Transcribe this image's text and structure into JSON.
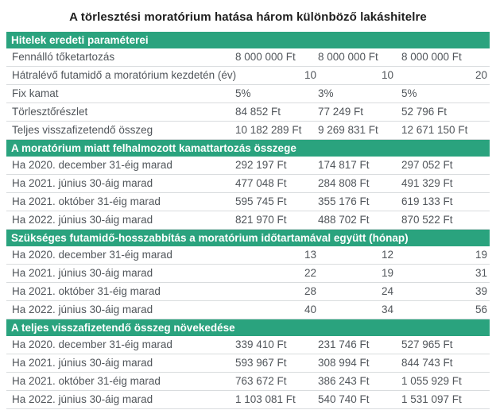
{
  "colors": {
    "accent_green": "#2aa37e",
    "section_header_text": "#ffffff",
    "row_text": "#51565b",
    "row_border": "#d9dcde",
    "title_text": "#1f1f1f",
    "background": "#ffffff"
  },
  "chart_data": {
    "type": "table",
    "title": "A törlesztési moratórium hatása három különböző lakáshitelre",
    "layout": {
      "value_columns": 3,
      "column_headers_visible": false,
      "section_header_style": "green-bar"
    },
    "sections": [
      {
        "header": "Hitelek eredeti paraméterei",
        "rows": [
          {
            "label": "Fennálló tőketartozás",
            "values": [
              "8 000 000 Ft",
              "8 000 000 Ft",
              "8 000 000 Ft"
            ]
          },
          {
            "label": "Hátralévő futamidő a moratórium kezdetén (év)",
            "values": [
              "10",
              "10",
              "20"
            ]
          },
          {
            "label": "Fix kamat",
            "values": [
              "5%",
              "3%",
              "5%"
            ]
          },
          {
            "label": "Törlesztőrészlet",
            "values": [
              "84 852 Ft",
              "77 249 Ft",
              "52 796 Ft"
            ]
          },
          {
            "label": "Teljes visszafizetendő összeg",
            "values": [
              "10 182 289 Ft",
              "9 269 831 Ft",
              "12 671 150 Ft"
            ]
          }
        ]
      },
      {
        "header": "A moratórium miatt felhalmozott kamattartozás összege",
        "rows": [
          {
            "label": "Ha 2020. december 31-éig marad",
            "values": [
              "292 197 Ft",
              "174 817 Ft",
              "297 052 Ft"
            ]
          },
          {
            "label": "Ha 2021. június 30-áig marad",
            "values": [
              "477 048 Ft",
              "284 808 Ft",
              "491 329 Ft"
            ]
          },
          {
            "label": "Ha 2021. október 31-éig marad",
            "values": [
              "595 745 Ft",
              "355 176 Ft",
              "619 133 Ft"
            ]
          },
          {
            "label": "Ha 2022. június 30-áig marad",
            "values": [
              "821 970 Ft",
              "488 702 Ft",
              "870 522 Ft"
            ]
          }
        ]
      },
      {
        "header": "Szükséges futamidő-hosszabbítás a moratórium időtartamával együtt (hónap)",
        "rows": [
          {
            "label": "Ha 2020. december 31-éig marad",
            "values": [
              "13",
              "12",
              "19"
            ]
          },
          {
            "label": "Ha 2021. június 30-áig marad",
            "values": [
              "22",
              "19",
              "31"
            ]
          },
          {
            "label": "Ha 2021. október 31-éig marad",
            "values": [
              "28",
              "24",
              "39"
            ]
          },
          {
            "label": "Ha 2022. június 30-áig marad",
            "values": [
              "40",
              "34",
              "56"
            ]
          }
        ]
      },
      {
        "header": "A teljes visszafizetendő összeg növekedése",
        "rows": [
          {
            "label": "Ha 2020. december 31-éig marad",
            "values": [
              "339 410 Ft",
              "231 746 Ft",
              "527 965 Ft"
            ]
          },
          {
            "label": "Ha 2021. június 30-áig marad",
            "values": [
              "593 967 Ft",
              "308 994 Ft",
              "844 743 Ft"
            ]
          },
          {
            "label": "Ha 2021. október 31-éig marad",
            "values": [
              "763 672 Ft",
              "386 243 Ft",
              "1 055 929 Ft"
            ]
          },
          {
            "label": "Ha 2022. június 30-áig marad",
            "values": [
              "1 103 081 Ft",
              "540 740 Ft",
              "1 531 097 Ft"
            ]
          }
        ]
      }
    ]
  }
}
